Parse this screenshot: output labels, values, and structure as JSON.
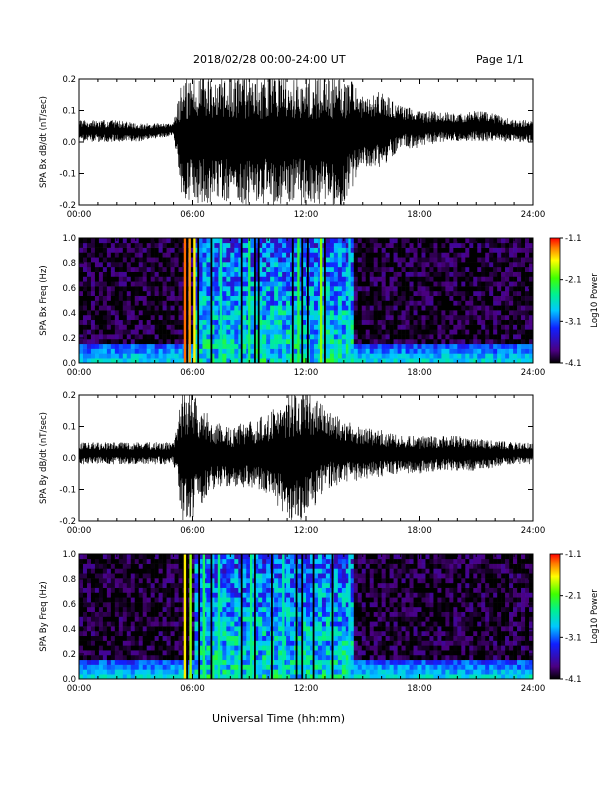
{
  "header": {
    "title": "2018/02/28  00:00-24:00 UT",
    "page": "Page 1/1"
  },
  "footer": {
    "xlabel": "Universal Time (hh:mm)"
  },
  "chart_data": [
    {
      "type": "line",
      "ylabel": "SPA Bx dB/dt (nT/sec)",
      "xlim": [
        0,
        24
      ],
      "ylim": [
        -0.2,
        0.2
      ],
      "x_ticks": [
        "00:00",
        "06:00",
        "12:00",
        "18:00",
        "24:00"
      ],
      "y_ticks": [
        "0.2",
        "0.1",
        "0.0",
        "-0.1",
        "-0.2"
      ],
      "y_tick_values": [
        0.2,
        0.1,
        0.0,
        -0.1,
        -0.2
      ],
      "series": [
        {
          "x": [
            0,
            1,
            2,
            3,
            4,
            5,
            5.5,
            6,
            7,
            8,
            9,
            10,
            11,
            12,
            13,
            14,
            15,
            16,
            17,
            18,
            19,
            20,
            21,
            22,
            23,
            24
          ],
          "y_upper": [
            0.07,
            0.07,
            0.07,
            0.06,
            0.06,
            0.06,
            0.22,
            0.22,
            0.22,
            0.22,
            0.22,
            0.22,
            0.22,
            0.22,
            0.22,
            0.22,
            0.16,
            0.16,
            0.12,
            0.1,
            0.1,
            0.09,
            0.1,
            0.09,
            0.07,
            0.07
          ],
          "y_lower": [
            0.0,
            0.0,
            0.0,
            0.0,
            0.01,
            0.02,
            -0.2,
            -0.2,
            -0.2,
            -0.2,
            -0.2,
            -0.2,
            -0.2,
            -0.2,
            -0.2,
            -0.2,
            -0.08,
            -0.08,
            -0.02,
            -0.02,
            0.0,
            0.0,
            0.0,
            0.0,
            0.0,
            0.0
          ]
        }
      ]
    },
    {
      "type": "heatmap",
      "ylabel": "SPA Bx Freq (Hz)",
      "xlim": [
        0,
        24
      ],
      "ylim": [
        0.0,
        1.0
      ],
      "x_ticks": [
        "00:00",
        "06:00",
        "12:00",
        "18:00",
        "24:00"
      ],
      "y_ticks": [
        "1.0",
        "0.8",
        "0.6",
        "0.4",
        "0.2",
        "0.0"
      ],
      "y_tick_values": [
        1.0,
        0.8,
        0.6,
        0.4,
        0.2,
        0.0
      ],
      "colorbar": {
        "label": "Log10 Power",
        "ticks": [
          "-1.1",
          "-2.1",
          "-3.1",
          "-4.1"
        ],
        "range": [
          -4.1,
          -1.1
        ]
      },
      "background_log_power": -4.0,
      "low_frequency_log_power": -3.2,
      "active_band_hours": [
        6.2,
        14.6
      ],
      "active_band_log_power": -2.6,
      "bright_lines": [
        {
          "hour": 5.6,
          "log_power": -1.3
        },
        {
          "hour": 5.85,
          "log_power": -1.4
        },
        {
          "hour": 6.1,
          "log_power": -1.6
        },
        {
          "hour": 7.5,
          "log_power": -2.5
        },
        {
          "hour": 9.0,
          "log_power": -2.3
        },
        {
          "hour": 11.6,
          "log_power": -2.2
        },
        {
          "hour": 12.8,
          "log_power": -1.9
        },
        {
          "hour": 14.3,
          "log_power": -2.7
        }
      ],
      "dark_lines": [
        5.72,
        6.3,
        7.0,
        8.6,
        9.3,
        9.5,
        11.3,
        11.8,
        12.1,
        13.0
      ]
    },
    {
      "type": "line",
      "ylabel": "SPA By dB/dt (nT/sec)",
      "xlim": [
        0,
        24
      ],
      "ylim": [
        -0.2,
        0.2
      ],
      "x_ticks": [
        "00:00",
        "06:00",
        "12:00",
        "18:00",
        "24:00"
      ],
      "y_ticks": [
        "0.2",
        "0.1",
        "0.0",
        "-0.1",
        "-0.2"
      ],
      "y_tick_values": [
        0.2,
        0.1,
        0.0,
        -0.1,
        -0.2
      ],
      "series": [
        {
          "x": [
            0,
            1,
            2,
            3,
            4,
            5,
            5.5,
            6,
            7,
            8,
            9,
            10,
            11,
            12,
            13,
            14,
            15,
            16,
            17,
            18,
            19,
            20,
            21,
            22,
            23,
            24
          ],
          "y_upper": [
            0.05,
            0.05,
            0.05,
            0.05,
            0.05,
            0.05,
            0.22,
            0.22,
            0.12,
            0.1,
            0.12,
            0.14,
            0.2,
            0.22,
            0.16,
            0.12,
            0.1,
            0.09,
            0.07,
            0.07,
            0.07,
            0.07,
            0.06,
            0.06,
            0.05,
            0.05
          ],
          "y_lower": [
            -0.02,
            -0.02,
            -0.02,
            -0.02,
            -0.02,
            -0.02,
            -0.2,
            -0.2,
            -0.1,
            -0.09,
            -0.1,
            -0.12,
            -0.2,
            -0.2,
            -0.1,
            -0.08,
            -0.07,
            -0.06,
            -0.05,
            -0.05,
            -0.04,
            -0.04,
            -0.04,
            -0.03,
            -0.02,
            -0.02
          ]
        }
      ]
    },
    {
      "type": "heatmap",
      "ylabel": "SPA By Freq (Hz)",
      "xlim": [
        0,
        24
      ],
      "ylim": [
        0.0,
        1.0
      ],
      "x_ticks": [
        "00:00",
        "06:00",
        "12:00",
        "18:00",
        "24:00"
      ],
      "y_ticks": [
        "1.0",
        "0.8",
        "0.6",
        "0.4",
        "0.2",
        "0.0"
      ],
      "y_tick_values": [
        1.0,
        0.8,
        0.6,
        0.4,
        0.2,
        0.0
      ],
      "colorbar": {
        "label": "Log10 Power",
        "ticks": [
          "-1.1",
          "-2.1",
          "-3.1",
          "-4.1"
        ],
        "range": [
          -4.1,
          -1.1
        ]
      },
      "background_log_power": -4.0,
      "low_frequency_log_power": -3.2,
      "active_band_hours": [
        6.2,
        14.6
      ],
      "active_band_log_power": -2.6,
      "bright_lines": [
        {
          "hour": 5.6,
          "log_power": -1.6
        },
        {
          "hour": 5.9,
          "log_power": -1.9
        },
        {
          "hour": 6.6,
          "log_power": -2.3
        },
        {
          "hour": 7.4,
          "log_power": -2.4
        },
        {
          "hour": 9.1,
          "log_power": -2.4
        },
        {
          "hour": 10.8,
          "log_power": -2.5
        },
        {
          "hour": 14.3,
          "log_power": -2.7
        }
      ],
      "dark_lines": [
        5.72,
        6.35,
        7.0,
        8.6,
        9.3,
        10.2,
        11.5,
        11.8,
        12.4,
        13.4
      ]
    }
  ]
}
